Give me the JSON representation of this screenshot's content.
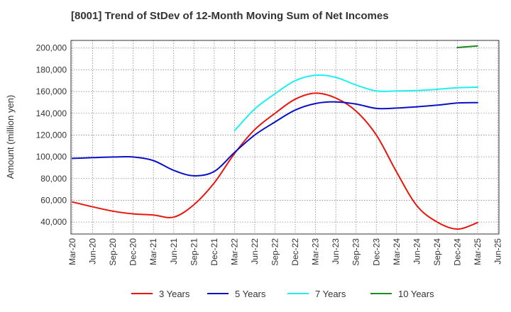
{
  "chart_data": {
    "type": "line",
    "title": "[8001]  Trend of StDev of 12-Month Moving Sum of Net Incomes",
    "ylabel": "Amount (million yen)",
    "xlabel": "",
    "ylim": [
      29000,
      207000
    ],
    "yticks": [
      40000,
      60000,
      80000,
      100000,
      120000,
      140000,
      160000,
      180000,
      200000
    ],
    "ytick_labels": [
      "40,000",
      "60,000",
      "80,000",
      "100,000",
      "120,000",
      "140,000",
      "160,000",
      "180,000",
      "200,000"
    ],
    "x_categories": [
      "Mar-20",
      "Jun-20",
      "Sep-20",
      "Dec-20",
      "Mar-21",
      "Jun-21",
      "Sep-21",
      "Dec-21",
      "Mar-22",
      "Jun-22",
      "Sep-22",
      "Dec-22",
      "Mar-23",
      "Jun-23",
      "Sep-23",
      "Dec-23",
      "Mar-24",
      "Jun-24",
      "Sep-24",
      "Dec-24",
      "Mar-25",
      "Jun-25"
    ],
    "grid": true,
    "legend_position": "bottom",
    "series": [
      {
        "name": "3 Years",
        "color": "#e8160c",
        "x": [
          "Mar-20",
          "Jun-20",
          "Sep-20",
          "Dec-20",
          "Mar-21",
          "Jun-21",
          "Sep-21",
          "Dec-21",
          "Mar-22",
          "Jun-22",
          "Sep-22",
          "Dec-22",
          "Mar-23",
          "Jun-23",
          "Sep-23",
          "Dec-23",
          "Mar-24",
          "Jun-24",
          "Sep-24",
          "Dec-24",
          "Mar-25"
        ],
        "values": [
          58500,
          54000,
          50000,
          47500,
          46500,
          44500,
          56000,
          76000,
          103000,
          125000,
          140000,
          153000,
          158500,
          154000,
          142000,
          120000,
          86000,
          55000,
          40000,
          33500,
          39500
        ]
      },
      {
        "name": "5 Years",
        "color": "#0a10c8",
        "x": [
          "Mar-20",
          "Jun-20",
          "Sep-20",
          "Dec-20",
          "Mar-21",
          "Jun-21",
          "Sep-21",
          "Dec-21",
          "Mar-22",
          "Jun-22",
          "Sep-22",
          "Dec-22",
          "Mar-23",
          "Jun-23",
          "Sep-23",
          "Dec-23",
          "Mar-24",
          "Jun-24",
          "Sep-24",
          "Dec-24",
          "Mar-25"
        ],
        "values": [
          98500,
          99200,
          99800,
          99800,
          96500,
          87500,
          82500,
          86500,
          104000,
          120000,
          132000,
          143000,
          149000,
          150500,
          148500,
          144500,
          144800,
          146000,
          147500,
          149500,
          149800
        ]
      },
      {
        "name": "7 Years",
        "color": "#1ef0f0",
        "x": [
          "Mar-22",
          "Jun-22",
          "Sep-22",
          "Dec-22",
          "Mar-23",
          "Jun-23",
          "Sep-23",
          "Dec-23",
          "Mar-24",
          "Jun-24",
          "Sep-24",
          "Dec-24",
          "Mar-25"
        ],
        "values": [
          124000,
          144000,
          158000,
          170000,
          175000,
          173000,
          166000,
          160500,
          160500,
          161000,
          162000,
          163500,
          164000
        ]
      },
      {
        "name": "10 Years",
        "color": "#1e8c1e",
        "x": [
          "Dec-24",
          "Mar-25"
        ],
        "values": [
          200500,
          202000
        ]
      }
    ]
  }
}
